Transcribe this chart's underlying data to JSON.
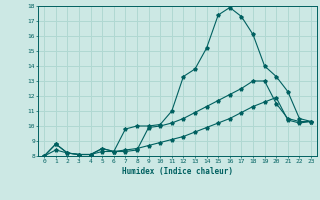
{
  "xlabel": "Humidex (Indice chaleur)",
  "background_color": "#cce8e4",
  "grid_color": "#b0d8d2",
  "line_color": "#006060",
  "xlim": [
    -0.5,
    23.5
  ],
  "ylim": [
    8,
    18
  ],
  "xticks": [
    0,
    1,
    2,
    3,
    4,
    5,
    6,
    7,
    8,
    9,
    10,
    11,
    12,
    13,
    14,
    15,
    16,
    17,
    18,
    19,
    20,
    21,
    22,
    23
  ],
  "yticks": [
    8,
    9,
    10,
    11,
    12,
    13,
    14,
    15,
    16,
    17,
    18
  ],
  "line2_x": [
    0,
    1,
    2,
    3,
    4,
    5,
    6,
    7,
    8,
    9,
    10,
    11,
    12,
    13,
    14,
    15,
    16,
    17,
    18,
    19,
    20,
    21,
    22,
    23
  ],
  "line2_y": [
    8.0,
    8.8,
    8.2,
    8.1,
    8.1,
    8.5,
    8.3,
    9.8,
    10.0,
    10.0,
    10.1,
    11.0,
    13.3,
    13.8,
    15.2,
    17.4,
    17.9,
    17.3,
    16.1,
    14.0,
    13.3,
    12.3,
    10.5,
    10.3
  ],
  "line1_x": [
    0,
    1,
    2,
    3,
    4,
    5,
    6,
    7,
    8,
    9,
    10,
    11,
    12,
    13,
    14,
    15,
    16,
    17,
    18,
    19,
    20,
    21,
    22,
    23
  ],
  "line1_y": [
    8.0,
    8.8,
    8.2,
    8.1,
    8.1,
    8.5,
    8.3,
    8.3,
    8.4,
    9.9,
    10.0,
    10.2,
    10.5,
    10.9,
    11.3,
    11.7,
    12.1,
    12.5,
    13.0,
    13.0,
    11.5,
    10.5,
    10.3,
    10.3
  ],
  "line3_x": [
    0,
    1,
    2,
    3,
    4,
    5,
    6,
    7,
    8,
    9,
    10,
    11,
    12,
    13,
    14,
    15,
    16,
    17,
    18,
    19,
    20,
    21,
    22,
    23
  ],
  "line3_y": [
    8.0,
    8.4,
    8.2,
    8.1,
    8.1,
    8.3,
    8.3,
    8.4,
    8.5,
    8.7,
    8.9,
    9.1,
    9.3,
    9.6,
    9.9,
    10.2,
    10.5,
    10.9,
    11.3,
    11.6,
    11.9,
    10.4,
    10.2,
    10.3
  ]
}
